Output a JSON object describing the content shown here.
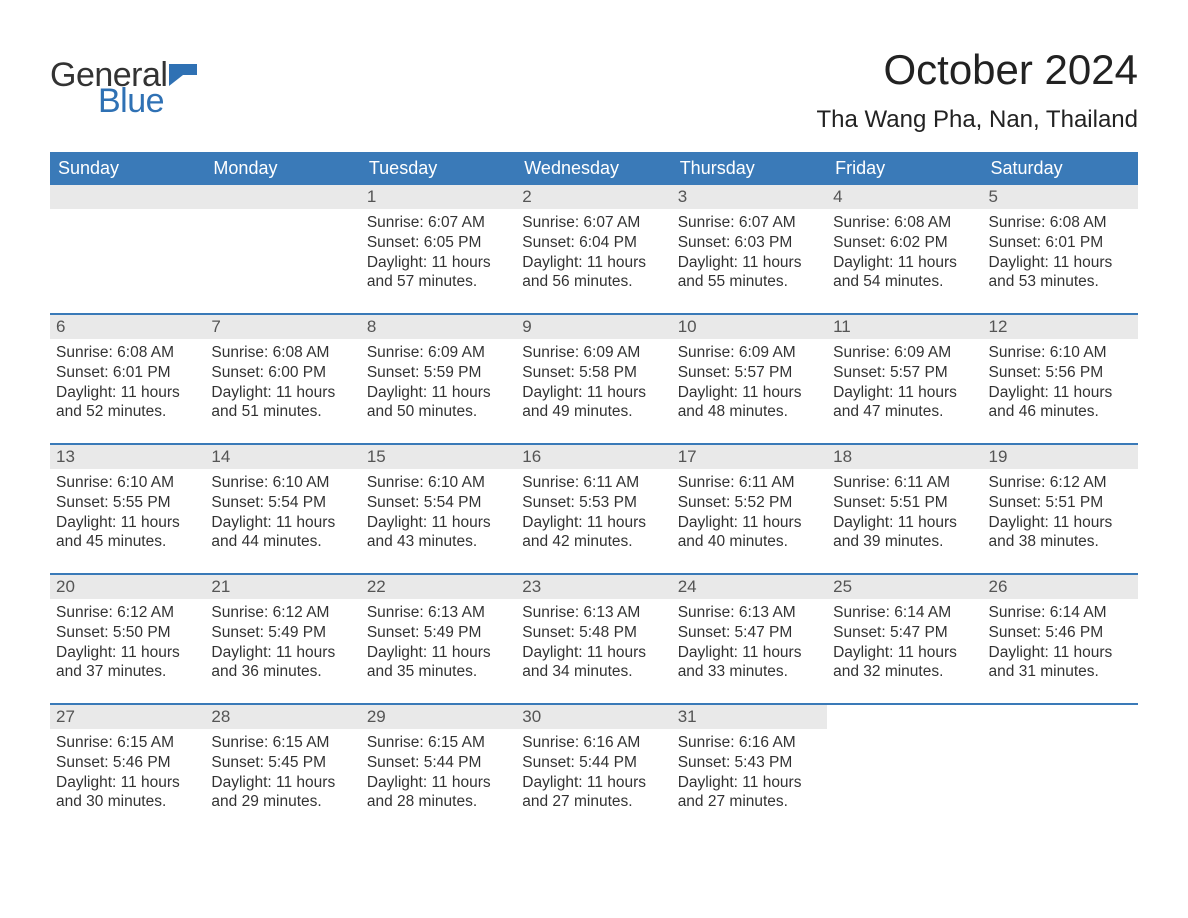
{
  "logo": {
    "word1": "General",
    "word2": "Blue",
    "flag_color": "#2f71b4",
    "word1_color": "#333333",
    "word2_color": "#2f71b4",
    "fontsize": 34
  },
  "title": "October 2024",
  "location": "Tha Wang Pha, Nan, Thailand",
  "title_fontsize": 42,
  "location_fontsize": 24,
  "colors": {
    "header_bg": "#3a7ab8",
    "header_text": "#ffffff",
    "daynum_bg": "#e9e9e9",
    "daynum_text": "#555555",
    "body_text": "#333333",
    "row_border": "#3a7ab8",
    "page_bg": "#ffffff"
  },
  "weekdays": [
    "Sunday",
    "Monday",
    "Tuesday",
    "Wednesday",
    "Thursday",
    "Friday",
    "Saturday"
  ],
  "weeks": [
    [
      null,
      null,
      {
        "day": "1",
        "sunrise": "Sunrise: 6:07 AM",
        "sunset": "Sunset: 6:05 PM",
        "daylight": "Daylight: 11 hours and 57 minutes."
      },
      {
        "day": "2",
        "sunrise": "Sunrise: 6:07 AM",
        "sunset": "Sunset: 6:04 PM",
        "daylight": "Daylight: 11 hours and 56 minutes."
      },
      {
        "day": "3",
        "sunrise": "Sunrise: 6:07 AM",
        "sunset": "Sunset: 6:03 PM",
        "daylight": "Daylight: 11 hours and 55 minutes."
      },
      {
        "day": "4",
        "sunrise": "Sunrise: 6:08 AM",
        "sunset": "Sunset: 6:02 PM",
        "daylight": "Daylight: 11 hours and 54 minutes."
      },
      {
        "day": "5",
        "sunrise": "Sunrise: 6:08 AM",
        "sunset": "Sunset: 6:01 PM",
        "daylight": "Daylight: 11 hours and 53 minutes."
      }
    ],
    [
      {
        "day": "6",
        "sunrise": "Sunrise: 6:08 AM",
        "sunset": "Sunset: 6:01 PM",
        "daylight": "Daylight: 11 hours and 52 minutes."
      },
      {
        "day": "7",
        "sunrise": "Sunrise: 6:08 AM",
        "sunset": "Sunset: 6:00 PM",
        "daylight": "Daylight: 11 hours and 51 minutes."
      },
      {
        "day": "8",
        "sunrise": "Sunrise: 6:09 AM",
        "sunset": "Sunset: 5:59 PM",
        "daylight": "Daylight: 11 hours and 50 minutes."
      },
      {
        "day": "9",
        "sunrise": "Sunrise: 6:09 AM",
        "sunset": "Sunset: 5:58 PM",
        "daylight": "Daylight: 11 hours and 49 minutes."
      },
      {
        "day": "10",
        "sunrise": "Sunrise: 6:09 AM",
        "sunset": "Sunset: 5:57 PM",
        "daylight": "Daylight: 11 hours and 48 minutes."
      },
      {
        "day": "11",
        "sunrise": "Sunrise: 6:09 AM",
        "sunset": "Sunset: 5:57 PM",
        "daylight": "Daylight: 11 hours and 47 minutes."
      },
      {
        "day": "12",
        "sunrise": "Sunrise: 6:10 AM",
        "sunset": "Sunset: 5:56 PM",
        "daylight": "Daylight: 11 hours and 46 minutes."
      }
    ],
    [
      {
        "day": "13",
        "sunrise": "Sunrise: 6:10 AM",
        "sunset": "Sunset: 5:55 PM",
        "daylight": "Daylight: 11 hours and 45 minutes."
      },
      {
        "day": "14",
        "sunrise": "Sunrise: 6:10 AM",
        "sunset": "Sunset: 5:54 PM",
        "daylight": "Daylight: 11 hours and 44 minutes."
      },
      {
        "day": "15",
        "sunrise": "Sunrise: 6:10 AM",
        "sunset": "Sunset: 5:54 PM",
        "daylight": "Daylight: 11 hours and 43 minutes."
      },
      {
        "day": "16",
        "sunrise": "Sunrise: 6:11 AM",
        "sunset": "Sunset: 5:53 PM",
        "daylight": "Daylight: 11 hours and 42 minutes."
      },
      {
        "day": "17",
        "sunrise": "Sunrise: 6:11 AM",
        "sunset": "Sunset: 5:52 PM",
        "daylight": "Daylight: 11 hours and 40 minutes."
      },
      {
        "day": "18",
        "sunrise": "Sunrise: 6:11 AM",
        "sunset": "Sunset: 5:51 PM",
        "daylight": "Daylight: 11 hours and 39 minutes."
      },
      {
        "day": "19",
        "sunrise": "Sunrise: 6:12 AM",
        "sunset": "Sunset: 5:51 PM",
        "daylight": "Daylight: 11 hours and 38 minutes."
      }
    ],
    [
      {
        "day": "20",
        "sunrise": "Sunrise: 6:12 AM",
        "sunset": "Sunset: 5:50 PM",
        "daylight": "Daylight: 11 hours and 37 minutes."
      },
      {
        "day": "21",
        "sunrise": "Sunrise: 6:12 AM",
        "sunset": "Sunset: 5:49 PM",
        "daylight": "Daylight: 11 hours and 36 minutes."
      },
      {
        "day": "22",
        "sunrise": "Sunrise: 6:13 AM",
        "sunset": "Sunset: 5:49 PM",
        "daylight": "Daylight: 11 hours and 35 minutes."
      },
      {
        "day": "23",
        "sunrise": "Sunrise: 6:13 AM",
        "sunset": "Sunset: 5:48 PM",
        "daylight": "Daylight: 11 hours and 34 minutes."
      },
      {
        "day": "24",
        "sunrise": "Sunrise: 6:13 AM",
        "sunset": "Sunset: 5:47 PM",
        "daylight": "Daylight: 11 hours and 33 minutes."
      },
      {
        "day": "25",
        "sunrise": "Sunrise: 6:14 AM",
        "sunset": "Sunset: 5:47 PM",
        "daylight": "Daylight: 11 hours and 32 minutes."
      },
      {
        "day": "26",
        "sunrise": "Sunrise: 6:14 AM",
        "sunset": "Sunset: 5:46 PM",
        "daylight": "Daylight: 11 hours and 31 minutes."
      }
    ],
    [
      {
        "day": "27",
        "sunrise": "Sunrise: 6:15 AM",
        "sunset": "Sunset: 5:46 PM",
        "daylight": "Daylight: 11 hours and 30 minutes."
      },
      {
        "day": "28",
        "sunrise": "Sunrise: 6:15 AM",
        "sunset": "Sunset: 5:45 PM",
        "daylight": "Daylight: 11 hours and 29 minutes."
      },
      {
        "day": "29",
        "sunrise": "Sunrise: 6:15 AM",
        "sunset": "Sunset: 5:44 PM",
        "daylight": "Daylight: 11 hours and 28 minutes."
      },
      {
        "day": "30",
        "sunrise": "Sunrise: 6:16 AM",
        "sunset": "Sunset: 5:44 PM",
        "daylight": "Daylight: 11 hours and 27 minutes."
      },
      {
        "day": "31",
        "sunrise": "Sunrise: 6:16 AM",
        "sunset": "Sunset: 5:43 PM",
        "daylight": "Daylight: 11 hours and 27 minutes."
      },
      null,
      null
    ]
  ]
}
